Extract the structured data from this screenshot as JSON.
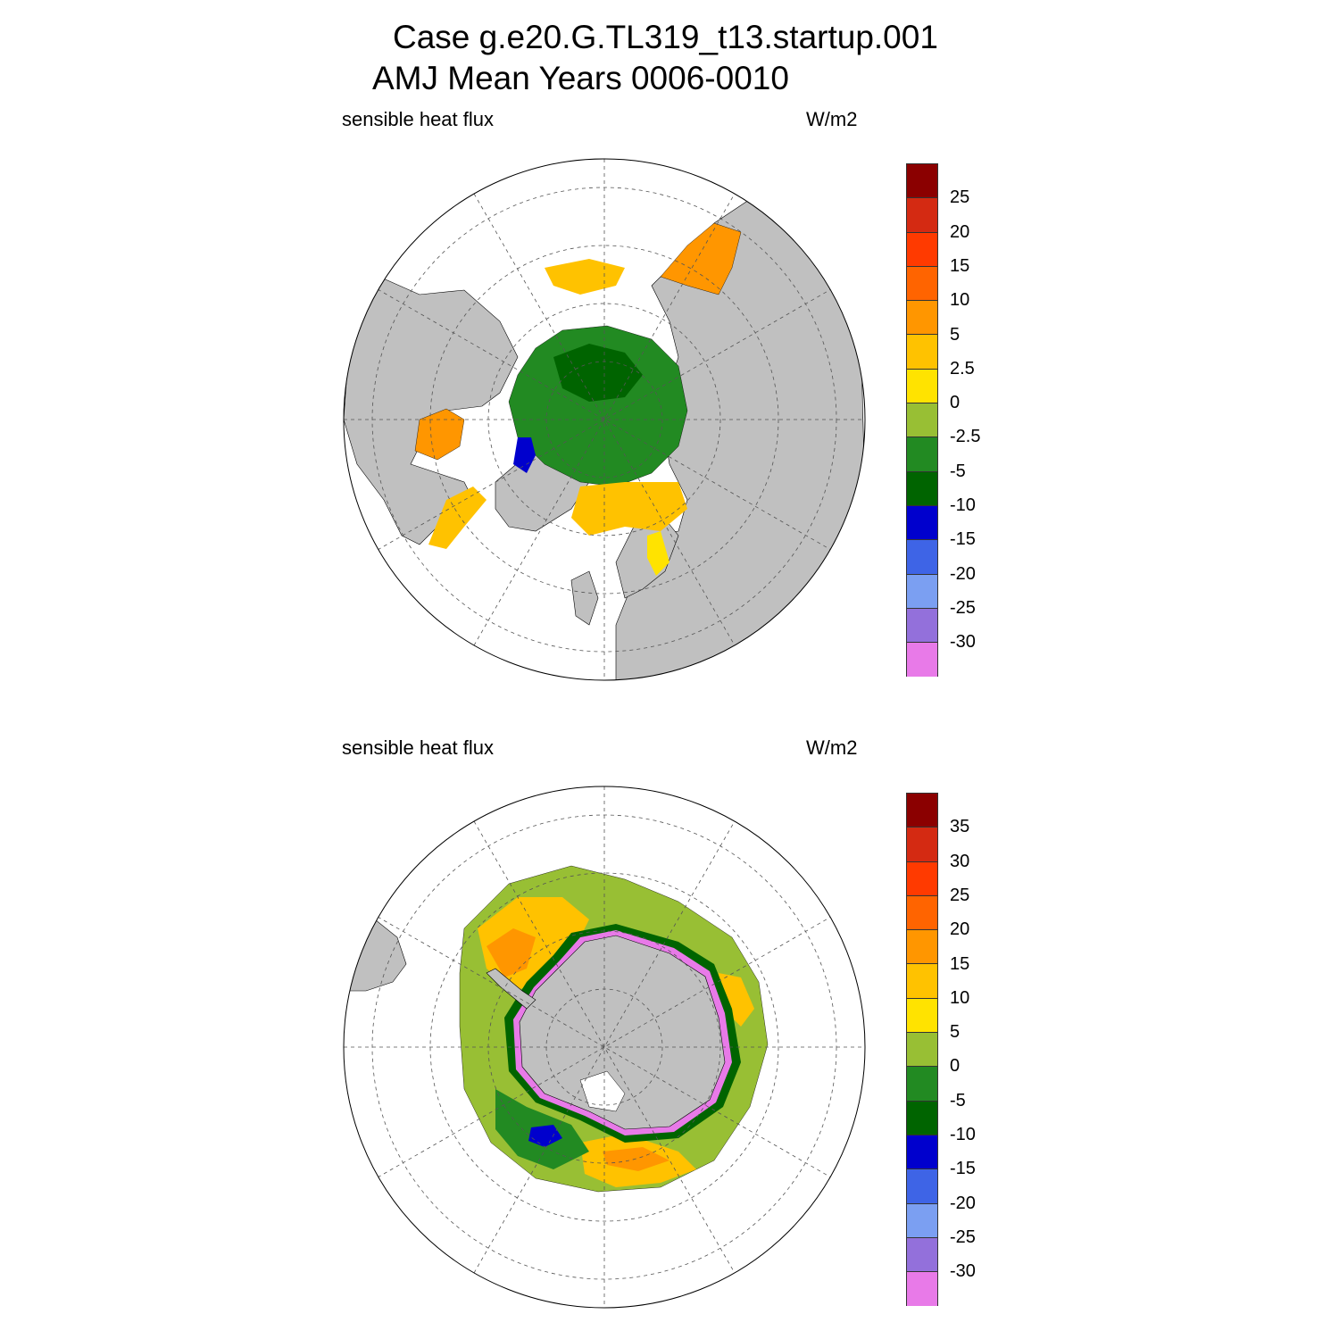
{
  "title": {
    "line1": "Case g.e20.G.TL319_t13.startup.001",
    "line2": "AMJ Mean   Years 0006-0010"
  },
  "panels": [
    {
      "id": "north",
      "hemisphere": "Northern",
      "left_label": "sensible heat flux",
      "right_label": "W/m2",
      "colorbar": {
        "colors": [
          "#8b0000",
          "#d42a12",
          "#ff3a00",
          "#ff6400",
          "#ff9600",
          "#ffc200",
          "#ffe300",
          "#98bf34",
          "#228a22",
          "#006400",
          "#0000cd",
          "#3e64e6",
          "#7b9ff2",
          "#9370db",
          "#e87ae8"
        ],
        "labels": [
          "25",
          "20",
          "15",
          "10",
          "5",
          "2.5",
          "0",
          "-2.5",
          "-5",
          "-10",
          "-15",
          "-20",
          "-25",
          "-30"
        ]
      }
    },
    {
      "id": "south",
      "hemisphere": "Southern",
      "left_label": "sensible heat flux",
      "right_label": "W/m2",
      "colorbar": {
        "colors": [
          "#8b0000",
          "#d42a12",
          "#ff3a00",
          "#ff6400",
          "#ff9600",
          "#ffc200",
          "#ffe300",
          "#98bf34",
          "#228a22",
          "#006400",
          "#0000cd",
          "#3e64e6",
          "#7b9ff2",
          "#9370db",
          "#e87ae8"
        ],
        "labels": [
          "35",
          "30",
          "25",
          "20",
          "15",
          "10",
          "5",
          "0",
          "-5",
          "-10",
          "-15",
          "-20",
          "-25",
          "-30"
        ]
      }
    }
  ],
  "colors": {
    "land": "#c0c0c0",
    "background": "#ffffff"
  }
}
